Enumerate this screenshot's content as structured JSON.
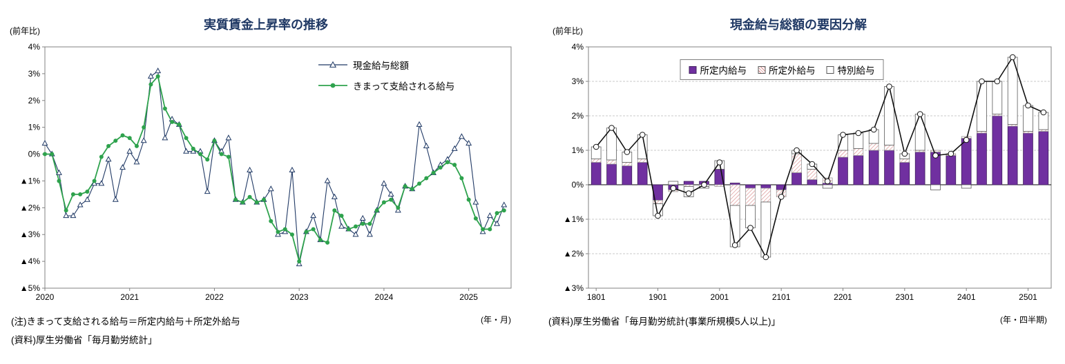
{
  "panels": {
    "left": {
      "y_unit": "(前年比)",
      "x_unit": "(年・月)",
      "notes": [
        "(注)きまって支給される給与＝所定内給与＋所定外給与",
        "(資料)厚生労働省「毎月勤労統計」"
      ]
    },
    "right": {
      "y_unit": "(前年比)",
      "x_unit": "(年・四半期)",
      "notes": [
        "(資料)厚生労働省「毎月勤労統計(事業所規模5人以上)」"
      ]
    }
  },
  "colors": {
    "title_navy": "#1F3864",
    "series_navy": "#1F3864",
    "series_green": "#2EA24D",
    "bar_purple": "#7030A0",
    "bar_pink_hatch": "#D98C8C",
    "bar_white": "#FFFFFF",
    "total_line_black": "#111111"
  },
  "chart_data": [
    {
      "id": "real-wage-growth",
      "type": "line",
      "title": "実質賃金上昇率の推移",
      "grid": false,
      "legend_position": "inside-top-right",
      "y_axis": {
        "unit": "(前年比)",
        "ylim": [
          -5,
          4
        ],
        "ticks": [
          {
            "value": 4,
            "label": "4%"
          },
          {
            "value": 3,
            "label": "3%"
          },
          {
            "value": 2,
            "label": "2%"
          },
          {
            "value": 1,
            "label": "1%"
          },
          {
            "value": 0,
            "label": "0%"
          },
          {
            "value": -1,
            "label": "▲1%"
          },
          {
            "value": -2,
            "label": "▲2%"
          },
          {
            "value": -3,
            "label": "▲3%"
          },
          {
            "value": -4,
            "label": "▲4%"
          },
          {
            "value": -5,
            "label": "▲5%"
          }
        ]
      },
      "x_axis": {
        "unit": "(年・月)",
        "span_months": 66,
        "start": "2020-01",
        "end": "2025-06",
        "ticks": [
          {
            "index": 0,
            "label": "2020"
          },
          {
            "index": 12,
            "label": "2021"
          },
          {
            "index": 24,
            "label": "2022"
          },
          {
            "index": 36,
            "label": "2023"
          },
          {
            "index": 48,
            "label": "2024"
          },
          {
            "index": 60,
            "label": "2025"
          }
        ]
      },
      "series": [
        {
          "name": "現金給与総額",
          "marker": "triangle-open",
          "color": "#1F3864",
          "values": [
            0.4,
            0.0,
            -0.7,
            -2.3,
            -2.3,
            -1.9,
            -1.7,
            -1.1,
            -1.1,
            -0.2,
            -1.7,
            -0.5,
            0.1,
            -0.3,
            0.5,
            2.9,
            3.1,
            0.6,
            1.3,
            1.1,
            0.1,
            0.1,
            0.1,
            -1.4,
            0.5,
            0.1,
            0.6,
            -1.7,
            -1.8,
            -0.6,
            -1.8,
            -1.7,
            -1.3,
            -3.0,
            -2.9,
            -0.6,
            -4.1,
            -2.9,
            -2.3,
            -3.2,
            -1.0,
            -1.6,
            -2.7,
            -2.8,
            -3.0,
            -2.4,
            -3.0,
            -2.1,
            -1.1,
            -1.5,
            -2.1,
            -1.2,
            -1.3,
            1.1,
            0.3,
            -0.7,
            -0.4,
            -0.2,
            0.2,
            0.65,
            0.4,
            -1.8,
            -2.9,
            -2.3,
            -2.6,
            -1.9
          ]
        },
        {
          "name": "きまって支給される給与",
          "marker": "circle",
          "color": "#2EA24D",
          "values": [
            0.0,
            0.0,
            -1.0,
            -2.1,
            -1.5,
            -1.5,
            -1.4,
            -1.0,
            -0.1,
            0.3,
            0.5,
            0.7,
            0.6,
            0.3,
            1.0,
            2.6,
            2.9,
            1.7,
            1.2,
            1.1,
            0.6,
            0.2,
            0.0,
            -0.2,
            0.5,
            0.0,
            -0.1,
            -1.7,
            -1.8,
            -1.6,
            -1.8,
            -1.7,
            -2.5,
            -2.9,
            -2.8,
            -3.0,
            -4.0,
            -2.9,
            -2.8,
            -3.2,
            -3.3,
            -2.1,
            -2.3,
            -2.8,
            -2.7,
            -2.6,
            -2.6,
            -2.1,
            -1.8,
            -1.7,
            -2.0,
            -1.2,
            -1.3,
            -1.1,
            -0.9,
            -0.7,
            -0.5,
            -0.3,
            -0.4,
            -0.9,
            -1.7,
            -2.4,
            -2.8,
            -2.8,
            -2.2,
            -2.1
          ]
        }
      ]
    },
    {
      "id": "cash-earnings-decomposition",
      "type": "stacked-bar-line",
      "title": "現金給与総額の要因分解",
      "grid": true,
      "legend_position": "inside-top-center",
      "y_axis": {
        "unit": "(前年比)",
        "ylim": [
          -3,
          4
        ],
        "ticks": [
          {
            "value": 4,
            "label": "4%"
          },
          {
            "value": 3,
            "label": "3%"
          },
          {
            "value": 2,
            "label": "2%"
          },
          {
            "value": 1,
            "label": "1%"
          },
          {
            "value": 0,
            "label": "0%"
          },
          {
            "value": -1,
            "label": "▲1%"
          },
          {
            "value": -2,
            "label": "▲2%"
          },
          {
            "value": -3,
            "label": "▲3%"
          }
        ]
      },
      "x_axis": {
        "unit": "(年・四半期)",
        "categories": [
          "1801",
          "1802",
          "1803",
          "1804",
          "1901",
          "1902",
          "1903",
          "1904",
          "2001",
          "2002",
          "2003",
          "2004",
          "2101",
          "2102",
          "2103",
          "2104",
          "2201",
          "2202",
          "2203",
          "2204",
          "2301",
          "2302",
          "2303",
          "2304",
          "2401",
          "2402",
          "2403",
          "2404",
          "2501",
          "2502"
        ],
        "ticks": [
          {
            "index": 0,
            "label": "1801"
          },
          {
            "index": 4,
            "label": "1901"
          },
          {
            "index": 8,
            "label": "2001"
          },
          {
            "index": 12,
            "label": "2101"
          },
          {
            "index": 16,
            "label": "2201"
          },
          {
            "index": 20,
            "label": "2301"
          },
          {
            "index": 24,
            "label": "2401"
          },
          {
            "index": 28,
            "label": "2501"
          }
        ]
      },
      "series": [
        {
          "name": "所定内給与",
          "style": "solid",
          "color": "#7030A0",
          "values": [
            0.65,
            0.6,
            0.55,
            0.65,
            -0.45,
            -0.15,
            0.1,
            0.1,
            0.45,
            0.05,
            -0.1,
            -0.1,
            -0.15,
            0.35,
            0.15,
            0.05,
            0.8,
            0.85,
            1.0,
            1.0,
            0.65,
            0.95,
            0.95,
            0.85,
            1.35,
            1.5,
            2.0,
            1.7,
            1.5,
            1.55
          ]
        },
        {
          "name": "所定外給与",
          "style": "hatched",
          "color": "#D98C8C",
          "values": [
            0.1,
            0.12,
            0.1,
            0.1,
            -0.1,
            -0.05,
            -0.05,
            -0.05,
            -0.05,
            -0.6,
            -0.5,
            -0.4,
            -0.2,
            0.55,
            0.3,
            0.15,
            0.2,
            0.2,
            0.2,
            0.15,
            0.1,
            0.05,
            0.05,
            0.05,
            0.05,
            0.05,
            0.05,
            0.05,
            0.05,
            0.05
          ]
        },
        {
          "name": "特別給与",
          "style": "open",
          "color": "#FFFFFF",
          "values": [
            0.35,
            0.93,
            0.3,
            0.7,
            -0.35,
            0.1,
            -0.3,
            -0.05,
            0.25,
            -1.2,
            -0.65,
            -1.6,
            0.0,
            0.1,
            0.15,
            -0.1,
            0.45,
            0.45,
            0.4,
            1.7,
            0.15,
            1.05,
            -0.15,
            0.0,
            -0.1,
            1.45,
            0.95,
            1.95,
            0.75,
            0.5
          ]
        }
      ],
      "total_line": {
        "name": "現金給与総額",
        "color": "#111111",
        "values": [
          1.1,
          1.65,
          0.95,
          1.45,
          -0.9,
          -0.1,
          -0.25,
          0.0,
          0.65,
          -1.75,
          -1.25,
          -2.1,
          -0.35,
          1.0,
          0.6,
          0.1,
          1.45,
          1.5,
          1.6,
          2.85,
          0.9,
          2.05,
          0.85,
          0.9,
          1.3,
          3.0,
          3.0,
          3.7,
          2.3,
          2.1
        ]
      }
    }
  ]
}
